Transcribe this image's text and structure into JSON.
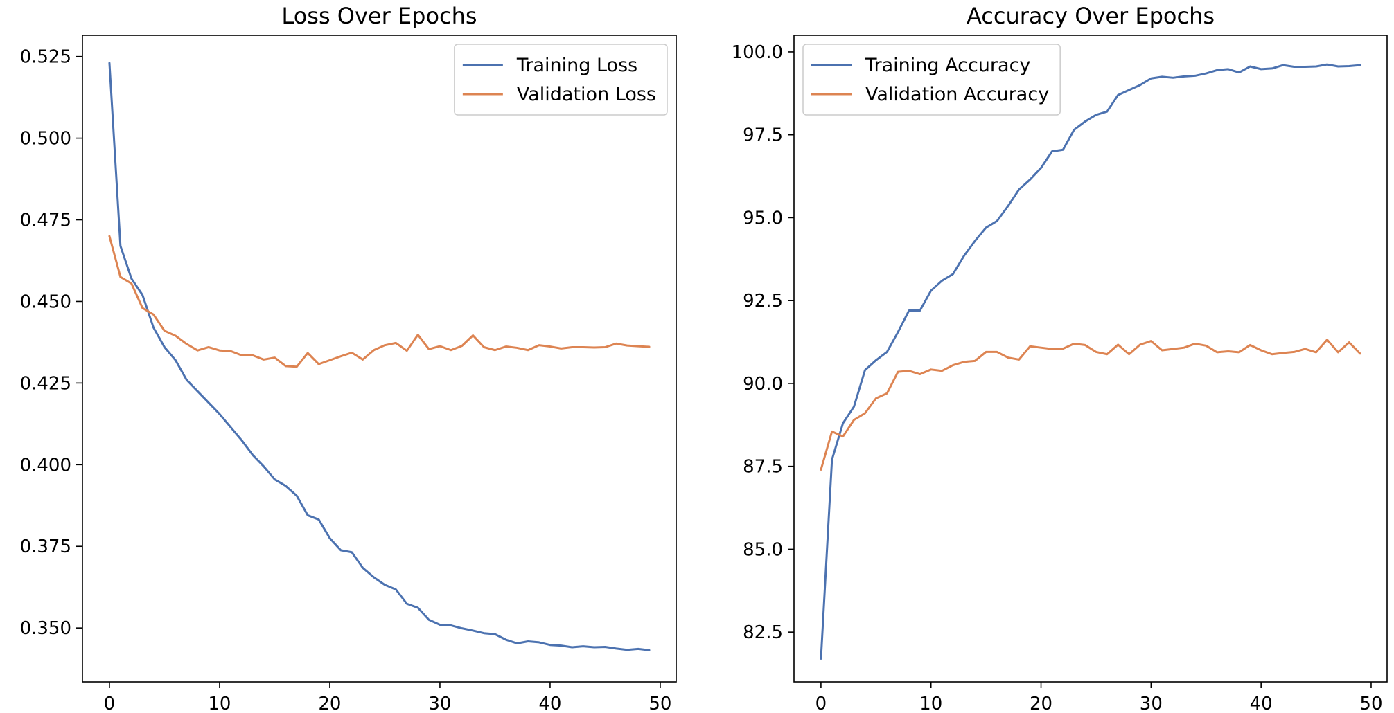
{
  "chart_data": [
    {
      "type": "line",
      "title": "Loss Over Epochs",
      "xlabel": "",
      "ylabel": "",
      "xlim": [
        -2.45,
        51.45
      ],
      "ylim": [
        0.3335,
        0.5315
      ],
      "xticks": [
        0,
        10,
        20,
        30,
        40,
        50
      ],
      "yticks": [
        0.35,
        0.375,
        0.4,
        0.425,
        0.45,
        0.475,
        0.5,
        0.525
      ],
      "ytick_labels": [
        "0.350",
        "0.375",
        "0.400",
        "0.425",
        "0.450",
        "0.475",
        "0.500",
        "0.525"
      ],
      "grid": false,
      "legend": "upper right",
      "x": [
        0,
        1,
        2,
        3,
        4,
        5,
        6,
        7,
        8,
        9,
        10,
        11,
        12,
        13,
        14,
        15,
        16,
        17,
        18,
        19,
        20,
        21,
        22,
        23,
        24,
        25,
        26,
        27,
        28,
        29,
        30,
        31,
        32,
        33,
        34,
        35,
        36,
        37,
        38,
        39,
        40,
        41,
        42,
        43,
        44,
        45,
        46,
        47,
        48,
        49
      ],
      "series": [
        {
          "name": "Training Loss",
          "color": "#4c72b0",
          "values": [
            0.523,
            0.467,
            0.457,
            0.452,
            0.442,
            0.436,
            0.432,
            0.426,
            0.4225,
            0.419,
            0.4155,
            0.4115,
            0.4075,
            0.403,
            0.3995,
            0.3955,
            0.3935,
            0.3905,
            0.3845,
            0.3832,
            0.3775,
            0.3738,
            0.3732,
            0.3684,
            0.3655,
            0.3632,
            0.3618,
            0.3574,
            0.3562,
            0.3525,
            0.351,
            0.3508,
            0.3499,
            0.3492,
            0.3484,
            0.3481,
            0.3464,
            0.3453,
            0.3459,
            0.3456,
            0.3448,
            0.3446,
            0.3441,
            0.3444,
            0.3441,
            0.3442,
            0.3437,
            0.3433,
            0.3436,
            0.3432
          ]
        },
        {
          "name": "Validation Loss",
          "color": "#dd8452",
          "values": [
            0.47,
            0.4575,
            0.4555,
            0.448,
            0.446,
            0.441,
            0.4395,
            0.437,
            0.435,
            0.436,
            0.435,
            0.4348,
            0.4335,
            0.4335,
            0.4322,
            0.4328,
            0.4302,
            0.43,
            0.4342,
            0.4308,
            0.432,
            0.4332,
            0.4343,
            0.4322,
            0.4351,
            0.4366,
            0.4373,
            0.4349,
            0.4398,
            0.4354,
            0.4363,
            0.4351,
            0.4364,
            0.4396,
            0.436,
            0.4351,
            0.4362,
            0.4358,
            0.4351,
            0.4366,
            0.4362,
            0.4356,
            0.436,
            0.436,
            0.4359,
            0.436,
            0.4371,
            0.4365,
            0.4363,
            0.4361
          ]
        }
      ]
    },
    {
      "type": "line",
      "title": "Accuracy Over Epochs",
      "xlabel": "",
      "ylabel": "",
      "xlim": [
        -2.45,
        51.45
      ],
      "ylim": [
        81.0,
        100.5
      ],
      "xticks": [
        0,
        10,
        20,
        30,
        40,
        50
      ],
      "yticks": [
        82.5,
        85.0,
        87.5,
        90.0,
        92.5,
        95.0,
        97.5,
        100.0
      ],
      "ytick_labels": [
        "82.5",
        "85.0",
        "87.5",
        "90.0",
        "92.5",
        "95.0",
        "97.5",
        "100.0"
      ],
      "grid": false,
      "legend": "upper left",
      "x": [
        0,
        1,
        2,
        3,
        4,
        5,
        6,
        7,
        8,
        9,
        10,
        11,
        12,
        13,
        14,
        15,
        16,
        17,
        18,
        19,
        20,
        21,
        22,
        23,
        24,
        25,
        26,
        27,
        28,
        29,
        30,
        31,
        32,
        33,
        34,
        35,
        36,
        37,
        38,
        39,
        40,
        41,
        42,
        43,
        44,
        45,
        46,
        47,
        48,
        49
      ],
      "series": [
        {
          "name": "Training Accuracy",
          "color": "#4c72b0",
          "values": [
            81.7,
            87.7,
            88.8,
            89.3,
            90.4,
            90.7,
            90.95,
            91.55,
            92.2,
            92.2,
            92.8,
            93.1,
            93.3,
            93.85,
            94.3,
            94.7,
            94.9,
            95.35,
            95.85,
            96.15,
            96.5,
            97.0,
            97.05,
            97.65,
            97.9,
            98.1,
            98.2,
            98.7,
            98.85,
            99.0,
            99.2,
            99.25,
            99.22,
            99.26,
            99.28,
            99.35,
            99.45,
            99.48,
            99.38,
            99.56,
            99.48,
            99.5,
            99.6,
            99.55,
            99.55,
            99.56,
            99.62,
            99.56,
            99.57,
            99.6
          ]
        },
        {
          "name": "Validation Accuracy",
          "color": "#dd8452",
          "values": [
            87.4,
            88.55,
            88.4,
            88.9,
            89.1,
            89.55,
            89.7,
            90.35,
            90.38,
            90.28,
            90.42,
            90.38,
            90.55,
            90.65,
            90.68,
            90.95,
            90.95,
            90.78,
            90.72,
            91.12,
            91.08,
            91.04,
            91.05,
            91.2,
            91.16,
            90.95,
            90.88,
            91.17,
            90.88,
            91.17,
            91.28,
            91.0,
            91.04,
            91.08,
            91.2,
            91.14,
            90.94,
            90.97,
            90.94,
            91.16,
            91.0,
            90.88,
            90.92,
            90.95,
            91.04,
            90.94,
            91.32,
            90.94,
            91.24,
            90.9
          ]
        }
      ]
    }
  ]
}
